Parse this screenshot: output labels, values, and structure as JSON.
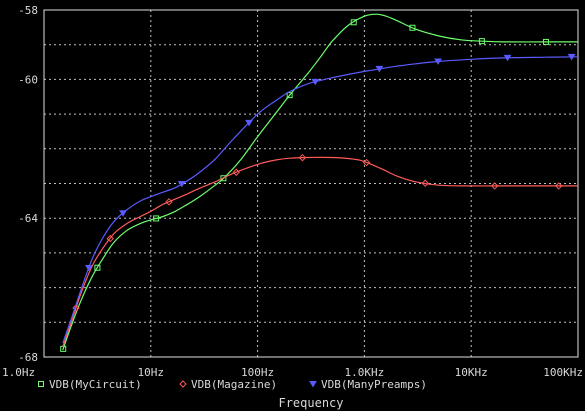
{
  "chart_data": {
    "type": "line",
    "xlabel": "Frequency",
    "ylabel": "",
    "x_scale": "log",
    "xlim": [
      1,
      100000
    ],
    "ylim": [
      -68,
      -58
    ],
    "grid": true,
    "legend_placement": "bottom",
    "x_ticks": [
      {
        "value": 1,
        "label": "1.0Hz"
      },
      {
        "value": 10,
        "label": "10Hz"
      },
      {
        "value": 100,
        "label": "100Hz"
      },
      {
        "value": 1000,
        "label": "1.0KHz"
      },
      {
        "value": 10000,
        "label": "10KHz"
      },
      {
        "value": 100000,
        "label": "100KHz"
      }
    ],
    "y_ticks": [
      {
        "value": -58,
        "label": "-58"
      },
      {
        "value": -60,
        "label": "-60"
      },
      {
        "value": -64,
        "label": "-64"
      },
      {
        "value": -68,
        "label": "-68"
      }
    ],
    "series": [
      {
        "name": "VDB(MyCircuit)",
        "color": "#6cff6c",
        "marker": "square",
        "x": [
          1.5,
          1.8,
          2.2,
          2.8,
          3.5,
          4.5,
          6,
          8,
          10,
          13,
          17,
          22,
          28,
          40,
          50,
          70,
          100,
          150,
          200,
          300,
          400,
          500,
          700,
          1000,
          1300,
          1600,
          2000,
          3000,
          5000,
          8000,
          13000,
          20000,
          50000,
          100000
        ],
        "y": [
          -67.8,
          -67.1,
          -66.4,
          -65.7,
          -65.2,
          -64.7,
          -64.35,
          -64.15,
          -64.05,
          -63.95,
          -63.8,
          -63.6,
          -63.4,
          -63.05,
          -62.8,
          -62.3,
          -61.65,
          -60.95,
          -60.45,
          -59.8,
          -59.3,
          -58.9,
          -58.45,
          -58.18,
          -58.12,
          -58.18,
          -58.3,
          -58.55,
          -58.75,
          -58.86,
          -58.9,
          -58.92,
          -58.92,
          -58.92
        ]
      },
      {
        "name": "VDB(Magazine)",
        "color": "#ff5a5a",
        "marker": "diamond",
        "x": [
          1.5,
          1.8,
          2.2,
          2.8,
          3.5,
          4.5,
          6,
          8,
          10,
          13,
          17,
          22,
          28,
          40,
          60,
          100,
          150,
          200,
          300,
          500,
          800,
          1000,
          1500,
          2000,
          3000,
          5000,
          10000,
          20000,
          100000
        ],
        "y": [
          -67.7,
          -67.0,
          -66.2,
          -65.4,
          -64.9,
          -64.45,
          -64.15,
          -63.95,
          -63.8,
          -63.6,
          -63.45,
          -63.3,
          -63.15,
          -62.95,
          -62.7,
          -62.45,
          -62.32,
          -62.27,
          -62.25,
          -62.25,
          -62.3,
          -62.37,
          -62.6,
          -62.78,
          -62.95,
          -63.05,
          -63.07,
          -63.07,
          -63.07
        ]
      },
      {
        "name": "VDB(ManyPreamps)",
        "color": "#5a5aff",
        "marker": "triangle",
        "x": [
          1.5,
          1.8,
          2.2,
          2.8,
          3.5,
          4.5,
          6,
          8,
          10,
          13,
          17,
          22,
          28,
          40,
          60,
          100,
          150,
          200,
          300,
          400,
          500,
          700,
          1000,
          1500,
          2000,
          3000,
          5000,
          10000,
          20000,
          50000,
          100000
        ],
        "y": [
          -67.6,
          -66.9,
          -66.1,
          -65.2,
          -64.6,
          -64.1,
          -63.75,
          -63.5,
          -63.38,
          -63.25,
          -63.12,
          -62.92,
          -62.7,
          -62.3,
          -61.7,
          -61.0,
          -60.6,
          -60.35,
          -60.12,
          -60.02,
          -59.95,
          -59.86,
          -59.77,
          -59.68,
          -59.62,
          -59.55,
          -59.48,
          -59.42,
          -59.38,
          -59.36,
          -59.35
        ]
      }
    ]
  }
}
